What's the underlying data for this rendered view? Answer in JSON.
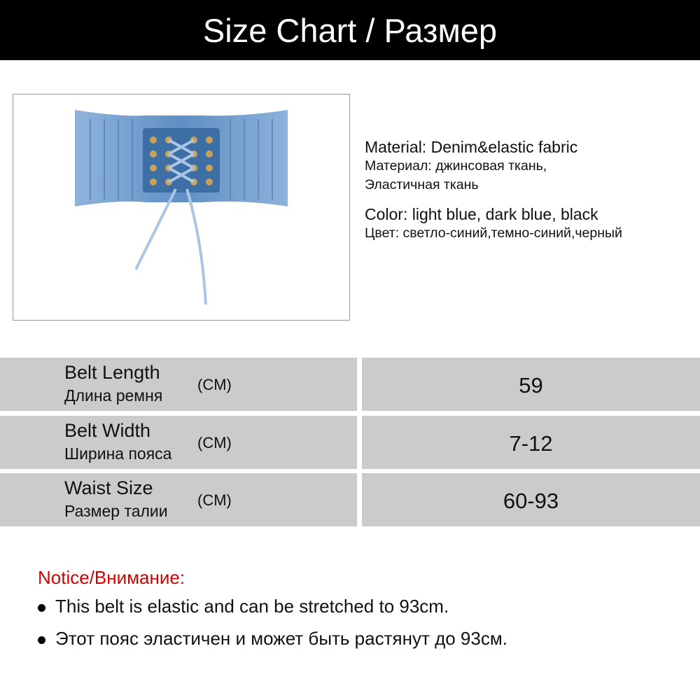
{
  "header": {
    "title": "Size Chart / Размер"
  },
  "product": {
    "image_alt": "denim elastic belt with lace-up front",
    "material_en": "Material: Denim&elastic fabric",
    "material_ru_1": "Материал: джинсовая ткань,",
    "material_ru_2": "Эластичная ткань",
    "color_en": "Color: light blue, dark blue, black",
    "color_ru": "Цвет: светло-синий,темно-синий,черный"
  },
  "size_table": {
    "rows": [
      {
        "label_en": "Belt Length",
        "label_ru": "Длина ремня",
        "unit": "(CM)",
        "value": "59"
      },
      {
        "label_en": "Belt Width",
        "label_ru": "Ширина пояса",
        "unit": "(CM)",
        "value": "7-12"
      },
      {
        "label_en": "Waist Size",
        "label_ru": "Размер талии",
        "unit": "(CM)",
        "value": "60-93"
      }
    ]
  },
  "notice": {
    "title": "Notice/Внимание:",
    "items": [
      "This belt is elastic and can be stretched to 93cm.",
      "Этот пояс эластичен и может быть растянут до 93см."
    ]
  },
  "colors": {
    "header_bg": "#000000",
    "table_bg": "#cbcbcb",
    "notice": "#d40000",
    "denim": "#6f9ccc"
  }
}
